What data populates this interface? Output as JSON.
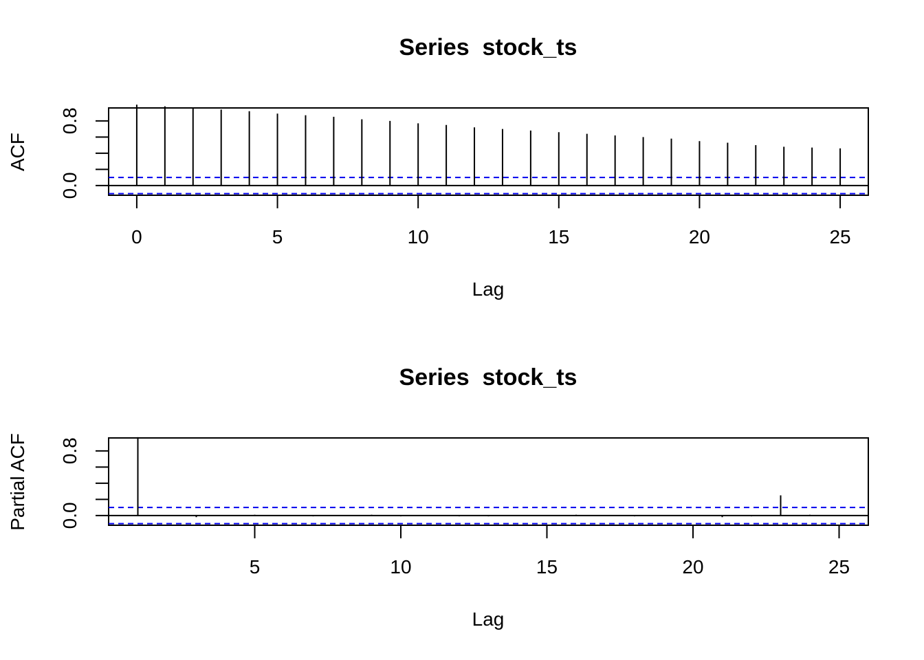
{
  "chart_data": [
    {
      "type": "bar",
      "subtype": "acf-correlogram",
      "title": "Series  stock_ts",
      "xlabel": "Lag",
      "ylabel": "ACF",
      "xlim": [
        -1,
        26
      ],
      "ylim": [
        -0.12,
        0.96
      ],
      "x_ticks": [
        0,
        5,
        10,
        15,
        20,
        25
      ],
      "y_ticks_labeled": [
        0.0,
        0.8
      ],
      "y_ticks": [
        0.0,
        0.2,
        0.4,
        0.6,
        0.8
      ],
      "ci_limit": 0.1,
      "x": [
        0,
        1,
        2,
        3,
        4,
        5,
        6,
        7,
        8,
        9,
        10,
        11,
        12,
        13,
        14,
        15,
        16,
        17,
        18,
        19,
        20,
        21,
        22,
        23,
        24,
        25
      ],
      "values": [
        1.0,
        0.98,
        0.96,
        0.94,
        0.92,
        0.89,
        0.87,
        0.85,
        0.82,
        0.8,
        0.77,
        0.75,
        0.72,
        0.7,
        0.68,
        0.66,
        0.64,
        0.62,
        0.6,
        0.58,
        0.55,
        0.53,
        0.5,
        0.48,
        0.47,
        0.46
      ],
      "grid": false
    },
    {
      "type": "bar",
      "subtype": "pacf-correlogram",
      "title": "Series  stock_ts",
      "xlabel": "Lag",
      "ylabel": "Partial ACF",
      "xlim": [
        0,
        26
      ],
      "ylim": [
        -0.12,
        0.96
      ],
      "x_ticks": [
        5,
        10,
        15,
        20,
        25
      ],
      "y_ticks_labeled": [
        0.0,
        0.8
      ],
      "y_ticks": [
        0.0,
        0.2,
        0.4,
        0.6,
        0.8
      ],
      "ci_limit": 0.1,
      "x": [
        1,
        2,
        3,
        4,
        5,
        6,
        7,
        8,
        9,
        10,
        11,
        12,
        13,
        14,
        15,
        16,
        17,
        18,
        19,
        20,
        21,
        22,
        23,
        24,
        25
      ],
      "values": [
        0.97,
        0.0,
        -0.02,
        0.0,
        0.01,
        0.0,
        -0.01,
        0.0,
        0.01,
        -0.01,
        0.0,
        -0.01,
        -0.01,
        0.0,
        0.0,
        0.01,
        0.0,
        -0.01,
        0.0,
        0.0,
        -0.02,
        -0.01,
        0.25,
        0.01,
        0.0
      ],
      "grid": false
    }
  ]
}
